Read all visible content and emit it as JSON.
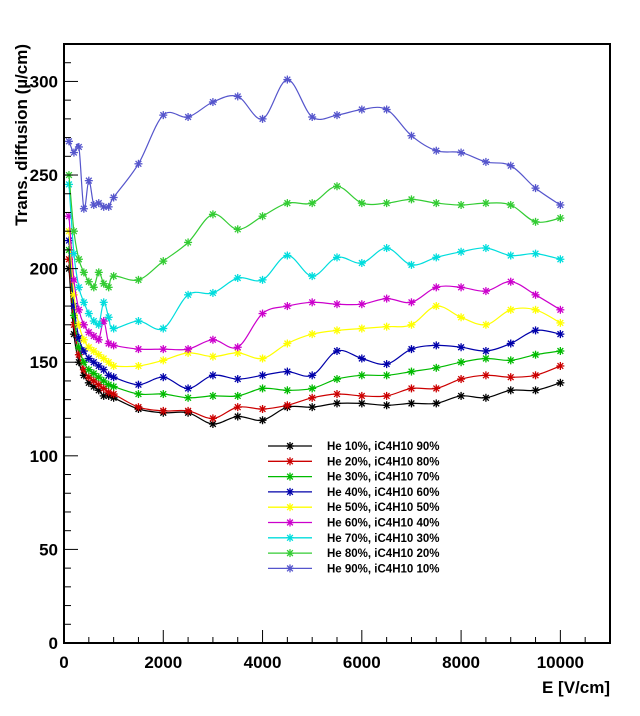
{
  "chart_data": {
    "type": "line",
    "title": "",
    "xlabel": "E [V/cm]",
    "ylabel": "Trans. diffusion (µ/cm)",
    "xlim": [
      0,
      11000
    ],
    "ylim": [
      0,
      320
    ],
    "xticks": [
      0,
      2000,
      4000,
      6000,
      8000,
      10000
    ],
    "xtick_labels": [
      "0",
      "2000",
      "4000",
      "6000",
      "8000",
      "10000"
    ],
    "yticks": [
      0,
      50,
      100,
      150,
      200,
      250,
      300
    ],
    "ytick_labels": [
      "0",
      "50",
      "100",
      "150",
      "200",
      "250",
      "300"
    ],
    "grid": false,
    "legend_position": "lower-center",
    "marker": "star",
    "series": [
      {
        "name": "He 10%, iC4H10 90%",
        "color": "#000000",
        "x": [
          100,
          200,
          300,
          400,
          500,
          600,
          700,
          800,
          900,
          1000,
          1500,
          2000,
          2500,
          3000,
          3500,
          4000,
          4500,
          5000,
          5500,
          6000,
          6500,
          7000,
          7500,
          8000,
          8500,
          9000,
          9500,
          10000
        ],
        "y": [
          200,
          165,
          150,
          143,
          139,
          137,
          135,
          132,
          132,
          131,
          125,
          123,
          123,
          117,
          121,
          119,
          126,
          126,
          128,
          128,
          127,
          128,
          128,
          132,
          131,
          135,
          135,
          139
        ]
      },
      {
        "name": "He 20%, iC4H10 80%",
        "color": "#cc0000",
        "x": [
          100,
          200,
          300,
          400,
          500,
          600,
          700,
          800,
          900,
          1000,
          1500,
          2000,
          2500,
          3000,
          3500,
          4000,
          4500,
          5000,
          5500,
          6000,
          6500,
          7000,
          7500,
          8000,
          8500,
          9000,
          9500,
          10000
        ],
        "y": [
          205,
          170,
          154,
          146,
          142,
          140,
          138,
          136,
          134,
          133,
          126,
          124,
          124,
          120,
          126,
          125,
          127,
          131,
          133,
          132,
          132,
          136,
          136,
          141,
          143,
          142,
          143,
          148
        ]
      },
      {
        "name": "He 30%, iC4H10 70%",
        "color": "#00bb00",
        "x": [
          100,
          200,
          300,
          400,
          500,
          600,
          700,
          800,
          900,
          1000,
          1500,
          2000,
          2500,
          3000,
          3500,
          4000,
          4500,
          5000,
          5500,
          6000,
          6500,
          7000,
          7500,
          8000,
          8500,
          9000,
          9500,
          10000
        ],
        "y": [
          210,
          175,
          158,
          150,
          146,
          144,
          142,
          140,
          138,
          137,
          133,
          133,
          131,
          132,
          132,
          136,
          135,
          136,
          141,
          143,
          143,
          145,
          147,
          150,
          152,
          151,
          154,
          156
        ]
      },
      {
        "name": "He 40%, iC4H10 60%",
        "color": "#0000aa",
        "x": [
          100,
          200,
          300,
          400,
          500,
          600,
          700,
          800,
          900,
          1000,
          1500,
          2000,
          2500,
          3000,
          3500,
          4000,
          4500,
          5000,
          5500,
          6000,
          6500,
          7000,
          7500,
          8000,
          8500,
          9000,
          9500,
          10000
        ],
        "y": [
          215,
          180,
          163,
          156,
          152,
          150,
          148,
          146,
          143,
          142,
          138,
          142,
          136,
          143,
          141,
          143,
          145,
          143,
          156,
          152,
          149,
          157,
          159,
          158,
          156,
          160,
          167,
          165
        ]
      },
      {
        "name": "He 50%, iC4H10 50%",
        "color": "#ffff00",
        "x": [
          100,
          200,
          300,
          400,
          500,
          600,
          700,
          800,
          900,
          1000,
          1500,
          2000,
          2500,
          3000,
          3500,
          4000,
          4500,
          5000,
          5500,
          6000,
          6500,
          7000,
          7500,
          8000,
          8500,
          9000,
          9500,
          10000
        ],
        "y": [
          220,
          186,
          170,
          162,
          158,
          156,
          154,
          152,
          150,
          148,
          148,
          151,
          155,
          153,
          155,
          152,
          160,
          165,
          167,
          168,
          169,
          170,
          180,
          174,
          170,
          178,
          178,
          171
        ]
      },
      {
        "name": "He 60%, iC4H10 40%",
        "color": "#cc00cc",
        "x": [
          100,
          200,
          300,
          400,
          500,
          600,
          700,
          800,
          900,
          1000,
          1500,
          2000,
          2500,
          3000,
          3500,
          4000,
          4500,
          5000,
          5500,
          6000,
          6500,
          7000,
          7500,
          8000,
          8500,
          9000,
          9500,
          10000
        ],
        "y": [
          228,
          194,
          178,
          170,
          166,
          164,
          162,
          172,
          160,
          159,
          157,
          157,
          157,
          162,
          158,
          176,
          180,
          182,
          181,
          181,
          184,
          182,
          190,
          190,
          188,
          193,
          186,
          178
        ]
      },
      {
        "name": "He 70%, iC4H10 30%",
        "color": "#00dddd",
        "x": [
          100,
          200,
          300,
          400,
          500,
          600,
          700,
          800,
          900,
          1000,
          1500,
          2000,
          2500,
          3000,
          3500,
          4000,
          4500,
          5000,
          5500,
          6000,
          6500,
          7000,
          7500,
          8000,
          8500,
          9000,
          9500,
          10000
        ],
        "y": [
          245,
          208,
          190,
          182,
          176,
          172,
          170,
          182,
          174,
          168,
          172,
          168,
          186,
          187,
          195,
          194,
          207,
          196,
          206,
          203,
          211,
          202,
          206,
          209,
          211,
          207,
          208,
          205
        ]
      },
      {
        "name": "He 80%, iC4H10 20%",
        "color": "#33cc33",
        "x": [
          100,
          200,
          300,
          400,
          500,
          600,
          700,
          800,
          900,
          1000,
          1500,
          2000,
          2500,
          3000,
          3500,
          4000,
          4500,
          5000,
          5500,
          6000,
          6500,
          7000,
          7500,
          8000,
          8500,
          9000,
          9500,
          10000
        ],
        "y": [
          250,
          220,
          205,
          198,
          193,
          190,
          198,
          192,
          190,
          196,
          194,
          204,
          214,
          229,
          221,
          228,
          235,
          235,
          244,
          235,
          235,
          237,
          235,
          234,
          235,
          234,
          225,
          227
        ]
      },
      {
        "name": "He 90%, iC4H10 10%",
        "color": "#5555cc",
        "x": [
          100,
          200,
          300,
          400,
          500,
          600,
          700,
          800,
          900,
          1000,
          1500,
          2000,
          2500,
          3000,
          3500,
          4000,
          4500,
          5000,
          5500,
          6000,
          6500,
          7000,
          7500,
          8000,
          8500,
          9000,
          9500,
          10000
        ],
        "y": [
          268,
          262,
          265,
          232,
          247,
          234,
          235,
          233,
          233,
          238,
          256,
          282,
          281,
          289,
          292,
          280,
          301,
          281,
          282,
          285,
          285,
          271,
          263,
          262,
          257,
          255,
          243,
          234
        ]
      }
    ]
  }
}
